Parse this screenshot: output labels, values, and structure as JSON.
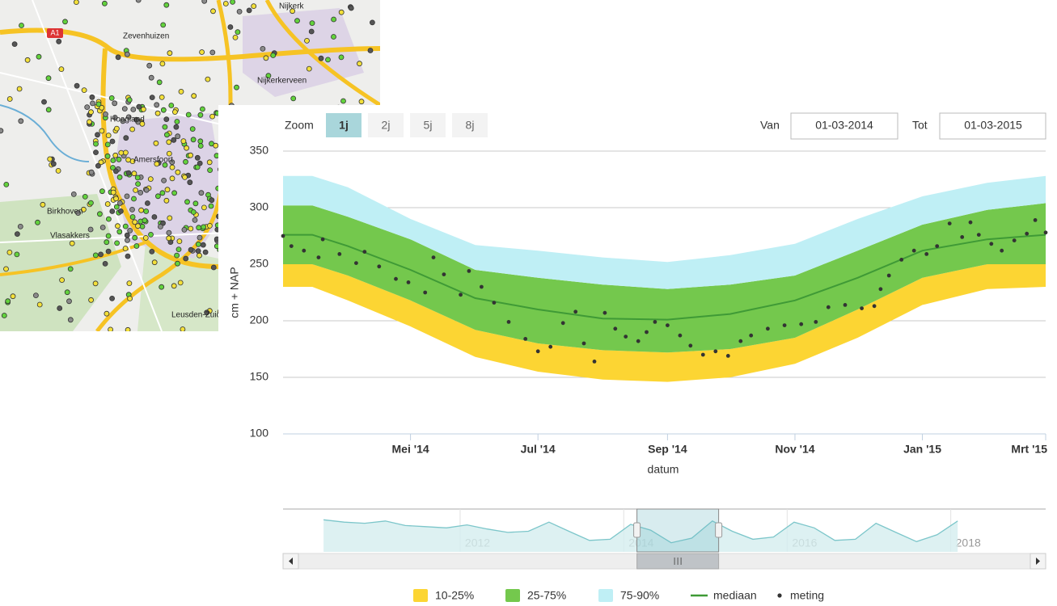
{
  "map": {
    "labels": [
      "Zevenhuizen",
      "A1",
      "Nijkerk",
      "Nijkerkerveen",
      "Hoogland",
      "Amersfoort",
      "Birkhoven",
      "Vlasakkers",
      "Leusden-Zuid"
    ]
  },
  "controls": {
    "zoom_label": "Zoom",
    "zoom_buttons": [
      "1j",
      "2j",
      "5j",
      "8j"
    ],
    "zoom_selected": 0,
    "from_label": "Van",
    "from_value": "01-03-2014",
    "to_label": "Tot",
    "to_value": "01-03-2015"
  },
  "chart_data": {
    "type": "line",
    "y_label": "cm + NAP",
    "x_label": "datum",
    "xlim": [
      "2014-03-01",
      "2015-03-01"
    ],
    "ylim": [
      100,
      350
    ],
    "yticks": [
      100,
      150,
      200,
      250,
      300,
      350
    ],
    "grid": true,
    "xticks": [
      {
        "value": "2014-05-01",
        "label": "Mei '14"
      },
      {
        "value": "2014-07-01",
        "label": "Jul '14"
      },
      {
        "value": "2014-09-01",
        "label": "Sep '14"
      },
      {
        "value": "2014-11-01",
        "label": "Nov '14"
      },
      {
        "value": "2015-01-01",
        "label": "Jan '15"
      },
      {
        "value": "2015-03-01",
        "label": "Mrt '15"
      }
    ],
    "x": [
      "2014-03-01",
      "2014-03-15",
      "2014-04-01",
      "2014-05-01",
      "2014-06-01",
      "2014-07-01",
      "2014-08-01",
      "2014-09-01",
      "2014-10-01",
      "2014-11-01",
      "2014-12-01",
      "2015-01-01",
      "2015-02-01",
      "2015-03-01"
    ],
    "bands": [
      {
        "name": "10-25%",
        "color": "#fcd533",
        "low": [
          230,
          230,
          218,
          195,
          168,
          155,
          148,
          146,
          150,
          162,
          185,
          214,
          228,
          230
        ],
        "high": [
          250,
          250,
          240,
          218,
          192,
          180,
          174,
          172,
          175,
          185,
          210,
          238,
          250,
          250
        ]
      },
      {
        "name": "25-75%",
        "color": "#74c84d",
        "low": [
          250,
          250,
          240,
          218,
          192,
          180,
          174,
          172,
          175,
          185,
          210,
          238,
          250,
          250
        ],
        "high": [
          302,
          302,
          292,
          272,
          245,
          238,
          232,
          228,
          232,
          240,
          262,
          285,
          298,
          304
        ]
      },
      {
        "name": "75-90%",
        "color": "#bfeff5",
        "low": [
          302,
          302,
          292,
          272,
          245,
          238,
          232,
          228,
          232,
          240,
          262,
          285,
          298,
          304
        ],
        "high": [
          328,
          328,
          318,
          290,
          267,
          262,
          256,
          252,
          258,
          268,
          290,
          310,
          322,
          328
        ]
      }
    ],
    "median": {
      "name": "mediaan",
      "color": "#3f9a36",
      "values": [
        276,
        276,
        266,
        245,
        220,
        210,
        202,
        201,
        206,
        218,
        238,
        262,
        272,
        276
      ]
    },
    "meting": {
      "name": "meting",
      "color": "#333333",
      "x": [
        "2014-03-01",
        "2014-03-05",
        "2014-03-11",
        "2014-03-18",
        "2014-03-20",
        "2014-03-28",
        "2014-04-05",
        "2014-04-09",
        "2014-04-16",
        "2014-04-24",
        "2014-04-30",
        "2014-05-08",
        "2014-05-12",
        "2014-05-17",
        "2014-05-25",
        "2014-05-29",
        "2014-06-04",
        "2014-06-10",
        "2014-06-17",
        "2014-06-25",
        "2014-07-01",
        "2014-07-07",
        "2014-07-13",
        "2014-07-19",
        "2014-07-23",
        "2014-07-28",
        "2014-08-02",
        "2014-08-07",
        "2014-08-12",
        "2014-08-18",
        "2014-08-22",
        "2014-08-26",
        "2014-09-01",
        "2014-09-07",
        "2014-09-12",
        "2014-09-18",
        "2014-09-24",
        "2014-09-30",
        "2014-10-06",
        "2014-10-11",
        "2014-10-19",
        "2014-10-27",
        "2014-11-04",
        "2014-11-11",
        "2014-11-17",
        "2014-11-25",
        "2014-12-03",
        "2014-12-09",
        "2014-12-12",
        "2014-12-16",
        "2014-12-22",
        "2014-12-28",
        "2015-01-03",
        "2015-01-08",
        "2015-01-14",
        "2015-01-20",
        "2015-01-24",
        "2015-01-28",
        "2015-02-03",
        "2015-02-08",
        "2015-02-14",
        "2015-02-20",
        "2015-02-24",
        "2015-03-01"
      ],
      "values": [
        275,
        266,
        262,
        256,
        272,
        259,
        251,
        261,
        248,
        237,
        234,
        225,
        256,
        241,
        223,
        244,
        230,
        216,
        199,
        184,
        173,
        177,
        198,
        208,
        180,
        164,
        207,
        193,
        186,
        182,
        190,
        199,
        196,
        187,
        178,
        170,
        173,
        169,
        182,
        187,
        193,
        196,
        197,
        199,
        212,
        214,
        211,
        213,
        228,
        240,
        254,
        262,
        259,
        266,
        286,
        274,
        287,
        276,
        268,
        262,
        271,
        277,
        289,
        278
      ]
    }
  },
  "navigator": {
    "xlim": [
      "2009-11-01",
      "2019-03-01"
    ],
    "ylim": [
      140,
      320
    ],
    "xticks": [
      {
        "value": "2012-01-01",
        "label": "2012"
      },
      {
        "value": "2014-01-01",
        "label": "2014"
      },
      {
        "value": "2016-01-01",
        "label": "2016"
      },
      {
        "value": "2018-01-01",
        "label": "2018"
      }
    ],
    "color": "#7cc6ca",
    "x": [
      "2010-05-01",
      "2010-08-01",
      "2010-11-01",
      "2011-02-01",
      "2011-05-01",
      "2011-08-01",
      "2011-11-01",
      "2012-02-01",
      "2012-05-01",
      "2012-08-01",
      "2012-11-01",
      "2013-02-01",
      "2013-05-01",
      "2013-08-01",
      "2013-11-01",
      "2014-02-01",
      "2014-05-01",
      "2014-08-01",
      "2014-11-01",
      "2015-02-01",
      "2015-05-01",
      "2015-08-01",
      "2015-11-01",
      "2016-02-01",
      "2016-05-01",
      "2016-08-01",
      "2016-11-01",
      "2017-02-01",
      "2017-05-01",
      "2017-08-01",
      "2017-11-01",
      "2018-02-01"
    ],
    "values": [
      280,
      270,
      265,
      275,
      255,
      250,
      245,
      258,
      240,
      225,
      230,
      270,
      230,
      190,
      195,
      260,
      235,
      180,
      200,
      275,
      230,
      195,
      205,
      270,
      245,
      190,
      195,
      265,
      225,
      185,
      215,
      275
    ]
  }
}
